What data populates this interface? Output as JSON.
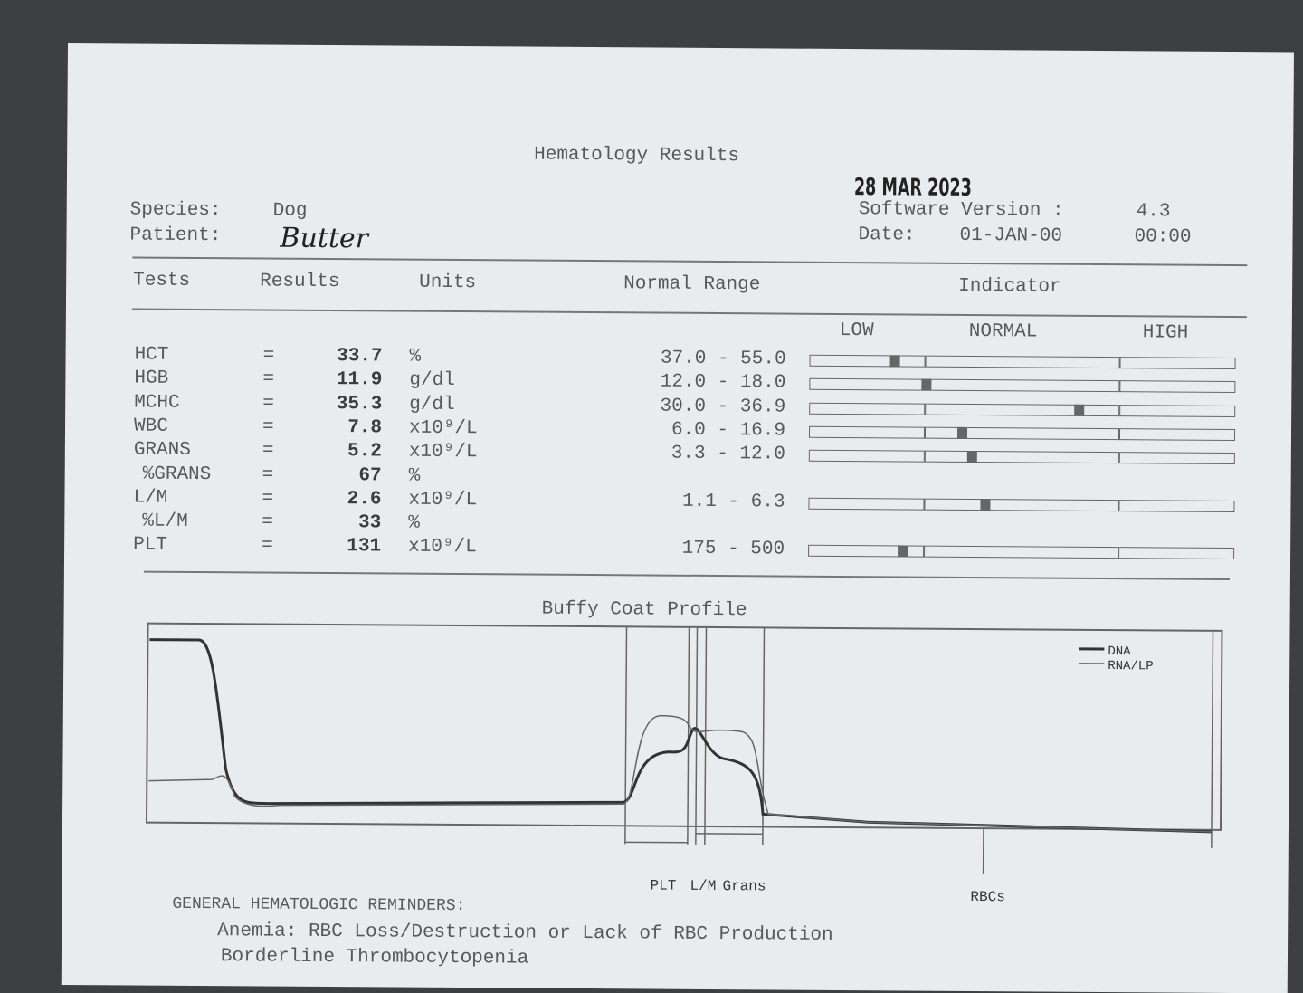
{
  "header": {
    "title": "Hematology Results",
    "stamp": "28 MAR 2023",
    "species_label": "Species:",
    "species": "Dog",
    "patient_label": "Patient:",
    "patient": "Butter",
    "software_label": "Software Version :",
    "software": "4.3",
    "date_label": "Date:",
    "date": "01-JAN-00",
    "time": "00:00"
  },
  "table": {
    "headers": [
      "Tests",
      "Results",
      "Units",
      "Normal Range",
      "Indicator"
    ],
    "indicator_labels": [
      "LOW",
      "NORMAL",
      "HIGH"
    ],
    "rows": [
      [
        "HCT",
        "=",
        "33.7",
        "%",
        "37.0 - 55.0"
      ],
      [
        "HGB",
        "=",
        "11.9",
        "g/dl",
        "12.0 - 18.0"
      ],
      [
        "MCHC",
        "=",
        "35.3",
        "g/dl",
        "30.0 - 36.9"
      ],
      [
        "WBC",
        "=",
        "7.8",
        "x10⁹/L",
        "6.0 - 16.9"
      ],
      [
        "GRANS",
        "=",
        "5.2",
        "x10⁹/L",
        "3.3 - 12.0"
      ],
      [
        "%GRANS",
        "=",
        "67",
        "%",
        ""
      ],
      [
        "L/M",
        "=",
        "2.6",
        "x10⁹/L",
        "1.1 - 6.3"
      ],
      [
        "%L/M",
        "=",
        "33",
        "%",
        ""
      ],
      [
        "PLT",
        "=",
        "131",
        "x10⁹/L",
        "175 - 500"
      ]
    ]
  },
  "profile": {
    "title": "Buffy Coat Profile",
    "legend": [
      "DNA",
      "RNA/LP"
    ],
    "zones": [
      "PLT",
      "L/M",
      "Grans",
      "RBCs"
    ]
  },
  "reminders": {
    "heading": "GENERAL HEMATOLOGIC REMINDERS:",
    "lines": [
      "Anemia: RBC Loss/Destruction or Lack of RBC Production",
      "Borderline Thrombocytopenia"
    ]
  }
}
